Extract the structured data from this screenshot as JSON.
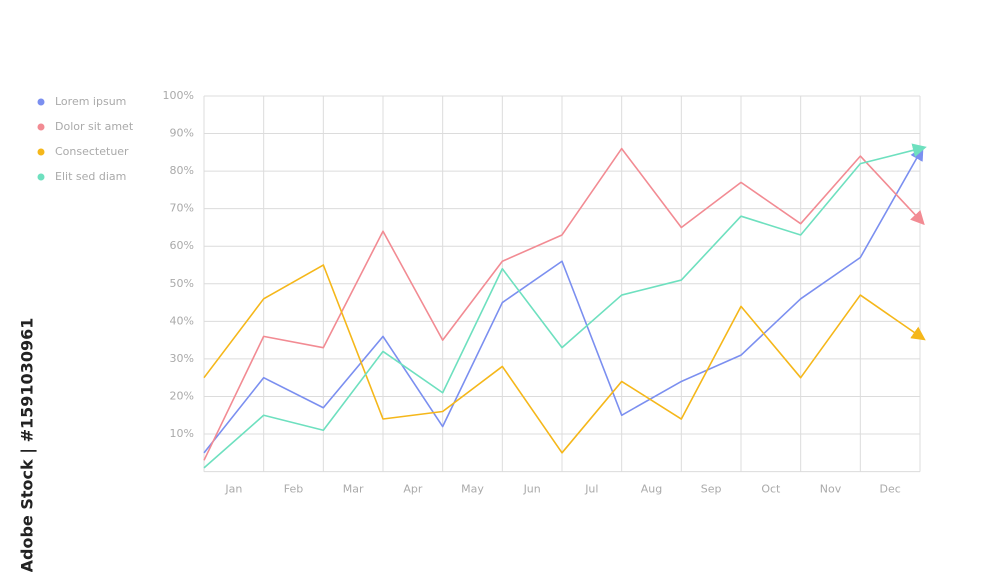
{
  "chart_data": {
    "type": "line",
    "x": [
      0,
      1,
      2,
      3,
      4,
      5,
      6,
      7,
      8,
      9,
      10,
      11,
      12
    ],
    "xlim": [
      0,
      12
    ],
    "xticks": [
      {
        "value": 0.5,
        "label": "Jan"
      },
      {
        "value": 1.5,
        "label": "Feb"
      },
      {
        "value": 2.5,
        "label": "Mar"
      },
      {
        "value": 3.5,
        "label": "Apr"
      },
      {
        "value": 4.5,
        "label": "May"
      },
      {
        "value": 5.5,
        "label": "Jun"
      },
      {
        "value": 6.5,
        "label": "Jul"
      },
      {
        "value": 7.5,
        "label": "Aug"
      },
      {
        "value": 8.5,
        "label": "Sep"
      },
      {
        "value": 9.5,
        "label": "Oct"
      },
      {
        "value": 10.5,
        "label": "Nov"
      },
      {
        "value": 11.5,
        "label": "Dec"
      }
    ],
    "ylim": [
      0,
      100
    ],
    "yticks": [
      {
        "value": 10,
        "label": "10%"
      },
      {
        "value": 20,
        "label": "20%"
      },
      {
        "value": 30,
        "label": "30%"
      },
      {
        "value": 40,
        "label": "40%"
      },
      {
        "value": 50,
        "label": "50%"
      },
      {
        "value": 60,
        "label": "60%"
      },
      {
        "value": 70,
        "label": "70%"
      },
      {
        "value": 80,
        "label": "80%"
      },
      {
        "value": 90,
        "label": "90%"
      },
      {
        "value": 100,
        "label": "100%"
      }
    ],
    "grid": true,
    "series": [
      {
        "name": "Lorem ipsum",
        "color": "#7b8ff0",
        "values": [
          5,
          25,
          17,
          36,
          12,
          45,
          56,
          15,
          24,
          31,
          46,
          57,
          85
        ]
      },
      {
        "name": "Dolor sit amet",
        "color": "#f28b93",
        "values": [
          3,
          36,
          33,
          64,
          35,
          56,
          63,
          86,
          65,
          77,
          66,
          84,
          67
        ]
      },
      {
        "name": "Consectetuer",
        "color": "#f5b71a",
        "values": [
          25,
          46,
          55,
          14,
          16,
          28,
          5,
          24,
          14,
          44,
          25,
          47,
          36
        ]
      },
      {
        "name": "Elit sed diam",
        "color": "#6ee0bf",
        "values": [
          1,
          15,
          11,
          32,
          21,
          54,
          33,
          47,
          51,
          68,
          63,
          82,
          86
        ]
      }
    ],
    "watermark": "Adobe Stock | #1591030961"
  }
}
